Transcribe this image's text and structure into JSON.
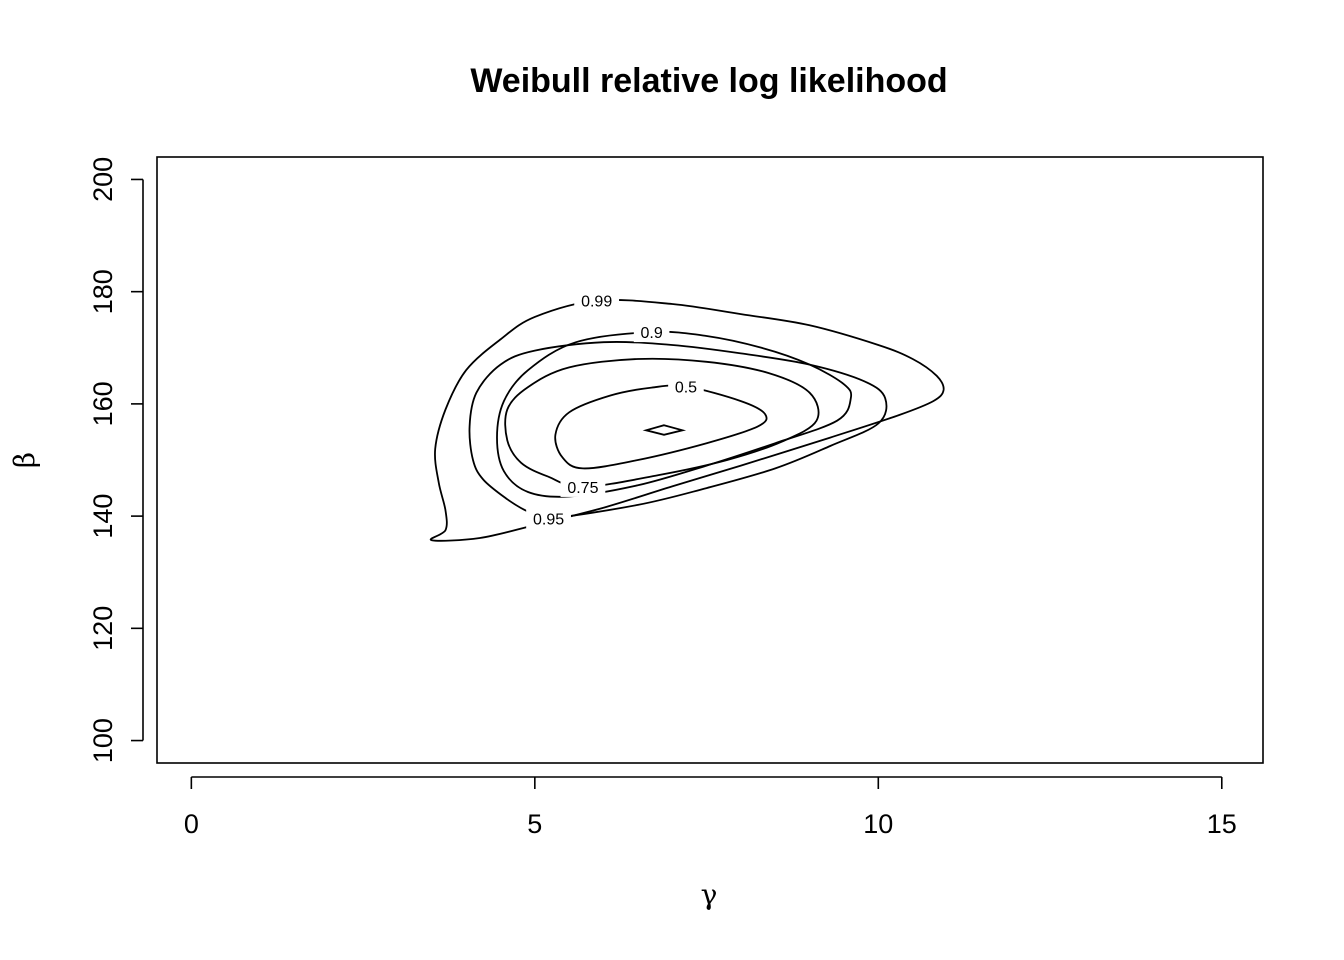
{
  "chart_data": {
    "type": "contour",
    "title": "Weibull relative log likelihood",
    "xlabel": "γ",
    "ylabel": "β",
    "xlim": [
      -0.5,
      15.6
    ],
    "ylim": [
      96,
      204
    ],
    "x_ticks": [
      0,
      5,
      10,
      15
    ],
    "y_ticks": [
      100,
      120,
      140,
      160,
      180,
      200
    ],
    "x_tick_labels": [
      "0",
      "5",
      "10",
      "15"
    ],
    "y_tick_labels": [
      "100",
      "120",
      "140",
      "160",
      "180",
      "200"
    ],
    "contours": [
      {
        "level": "0.99",
        "label_at": [
          5.9,
          178.4
        ],
        "points": [
          [
            5.9,
            178.4
          ],
          [
            7.0,
            177.8
          ],
          [
            8.0,
            176.0
          ],
          [
            9.0,
            174.0
          ],
          [
            10.0,
            170.5
          ],
          [
            10.5,
            168.0
          ],
          [
            10.85,
            165.0
          ],
          [
            10.95,
            162.5
          ],
          [
            10.8,
            160.5
          ],
          [
            10.3,
            158.0
          ],
          [
            9.3,
            154.0
          ],
          [
            8.0,
            149.0
          ],
          [
            7.0,
            145.3
          ],
          [
            6.0,
            141.5
          ],
          [
            5.0,
            138.4
          ],
          [
            4.2,
            136.1
          ],
          [
            3.5,
            135.7
          ],
          [
            3.7,
            137.5
          ],
          [
            3.7,
            141.0
          ],
          [
            3.6,
            146.0
          ],
          [
            3.55,
            152.0
          ],
          [
            3.7,
            159.0
          ],
          [
            4.0,
            166.0
          ],
          [
            4.5,
            171.5
          ],
          [
            5.0,
            175.5
          ]
        ]
      },
      {
        "level": "0.95",
        "label_at": [
          5.2,
          139.6
        ],
        "points": [
          [
            5.2,
            139.6
          ],
          [
            6.5,
            142.0
          ],
          [
            7.5,
            145.0
          ],
          [
            8.5,
            148.5
          ],
          [
            9.3,
            152.5
          ],
          [
            10.0,
            156.5
          ],
          [
            10.1,
            161.0
          ],
          [
            9.8,
            164.0
          ],
          [
            9.0,
            167.0
          ],
          [
            8.0,
            169.0
          ],
          [
            7.0,
            170.5
          ],
          [
            6.0,
            171.0
          ],
          [
            5.0,
            169.5
          ],
          [
            4.5,
            167.0
          ],
          [
            4.15,
            162.0
          ],
          [
            4.05,
            156.0
          ],
          [
            4.1,
            150.0
          ],
          [
            4.25,
            146.5
          ],
          [
            4.6,
            143.0
          ],
          [
            4.9,
            140.8
          ]
        ]
      },
      {
        "level": "0.9",
        "label_at": [
          6.7,
          172.8
        ],
        "points": [
          [
            6.7,
            172.8
          ],
          [
            7.5,
            172.1
          ],
          [
            8.3,
            170.0
          ],
          [
            9.0,
            167.0
          ],
          [
            9.5,
            163.5
          ],
          [
            9.6,
            161.0
          ],
          [
            9.4,
            157.0
          ],
          [
            8.5,
            153.0
          ],
          [
            7.5,
            149.0
          ],
          [
            6.5,
            145.5
          ],
          [
            5.5,
            143.5
          ],
          [
            4.9,
            144.3
          ],
          [
            4.55,
            148.0
          ],
          [
            4.45,
            154.0
          ],
          [
            4.55,
            160.5
          ],
          [
            4.9,
            166.0
          ],
          [
            5.6,
            171.0
          ]
        ]
      },
      {
        "level": "0.75",
        "label_at": [
          5.7,
          145.2
        ],
        "points": [
          [
            5.7,
            145.2
          ],
          [
            6.8,
            147.3
          ],
          [
            7.8,
            150.0
          ],
          [
            8.6,
            153.3
          ],
          [
            9.1,
            157.0
          ],
          [
            9.0,
            162.0
          ],
          [
            8.4,
            165.5
          ],
          [
            7.5,
            167.5
          ],
          [
            6.5,
            168.0
          ],
          [
            5.5,
            166.5
          ],
          [
            4.9,
            163.0
          ],
          [
            4.6,
            159.0
          ],
          [
            4.6,
            153.5
          ],
          [
            4.8,
            149.5
          ],
          [
            5.2,
            147.0
          ]
        ]
      },
      {
        "level": "0.5",
        "label_at": [
          7.2,
          163.1
        ],
        "points": [
          [
            7.2,
            163.1
          ],
          [
            8.0,
            160.5
          ],
          [
            8.35,
            158.2
          ],
          [
            8.25,
            156.0
          ],
          [
            7.5,
            153.0
          ],
          [
            6.5,
            150.0
          ],
          [
            5.7,
            148.5
          ],
          [
            5.4,
            150.5
          ],
          [
            5.3,
            154.5
          ],
          [
            5.5,
            158.5
          ],
          [
            6.1,
            161.5
          ],
          [
            6.7,
            162.9
          ]
        ]
      },
      {
        "level": "max",
        "label_at": null,
        "points": [
          [
            6.88,
            156.2
          ],
          [
            7.15,
            155.3
          ],
          [
            6.88,
            154.5
          ],
          [
            6.62,
            155.3
          ]
        ]
      }
    ]
  }
}
